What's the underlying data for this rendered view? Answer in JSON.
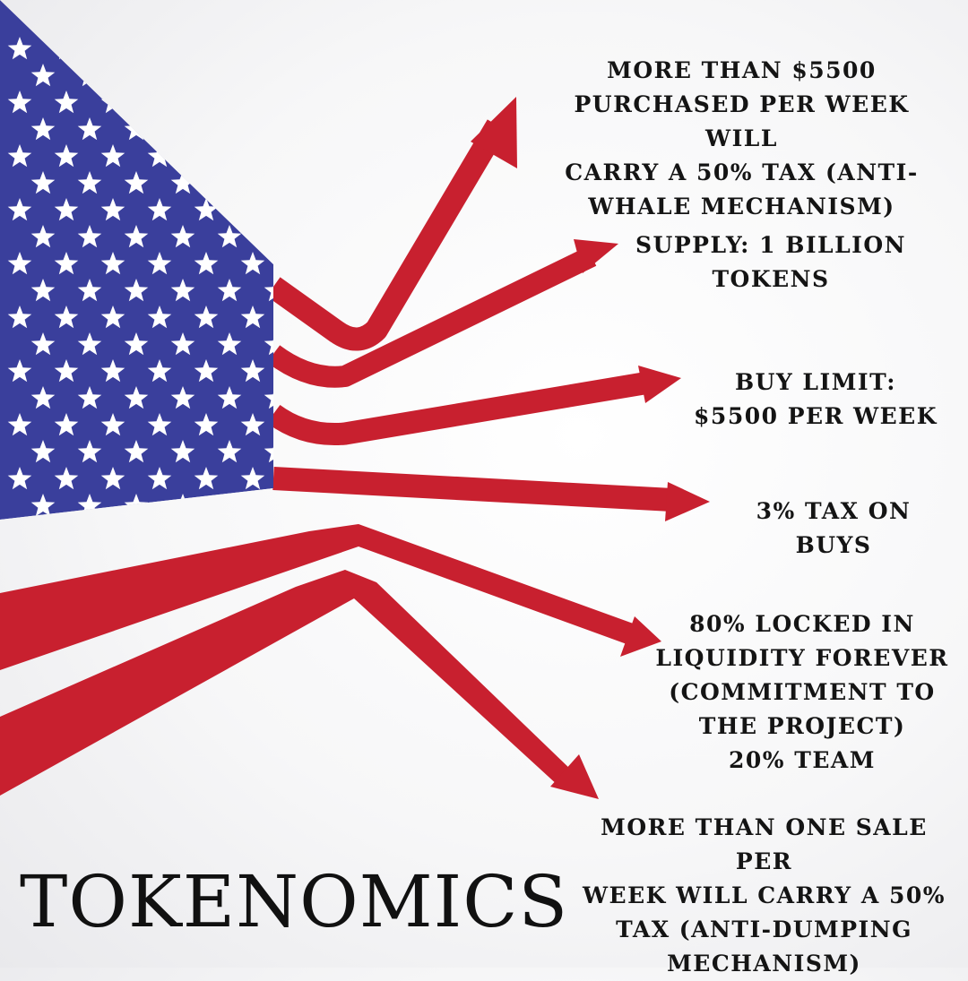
{
  "title": "TOKENOMICS",
  "colors": {
    "flag_blue": "#3a3f9c",
    "stripe_red": "#c8202f",
    "star_white": "#ffffff",
    "text": "#141414"
  },
  "points": [
    {
      "text": "MORE THAN $5500\nPURCHASED PER WEEK WILL\nCARRY A 50% TAX (ANTI-\nWHALE MECHANISM)"
    },
    {
      "text": "SUPPLY: 1 BILLION\nTOKENS"
    },
    {
      "text": "BUY LIMIT:\n$5500 PER WEEK"
    },
    {
      "text": "3% TAX ON\nBUYS"
    },
    {
      "text": "80% LOCKED IN\nLIQUIDITY FOREVER\n(COMMITMENT TO\nTHE PROJECT)\n20% TEAM"
    },
    {
      "text": "MORE THAN ONE SALE PER\nWEEK WILL CARRY A 50%\nTAX (ANTI-DUMPING\nMECHANISM)"
    }
  ]
}
